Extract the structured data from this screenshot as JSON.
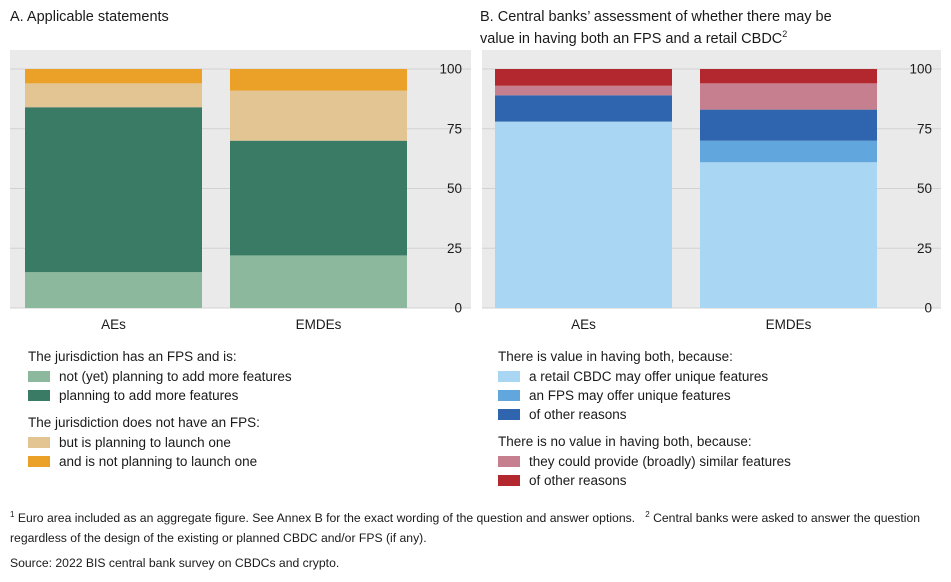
{
  "panelA": {
    "title": "A. Applicable statements",
    "legend": {
      "group1_title": "The jurisdiction has an FPS and is:",
      "group1": [
        {
          "label": "not (yet) planning to add more features",
          "color": "#8cb89d"
        },
        {
          "label": "planning to add more features",
          "color": "#3a7b65"
        }
      ],
      "group2_title": "The jurisdiction does not have an FPS:",
      "group2": [
        {
          "label": "but is planning to launch one",
          "color": "#e3c593"
        },
        {
          "label": "and is not planning to launch one",
          "color": "#eba128"
        }
      ]
    }
  },
  "panelB": {
    "title_line1": "B. Central banks’ assessment of whether there may be",
    "title_line2": "value in having both an FPS and a retail CBDC",
    "title_sup": "2",
    "legend": {
      "group1_title": "There is value in having both, because:",
      "group1": [
        {
          "label": "a retail CBDC may offer unique features",
          "color": "#a9d6f3"
        },
        {
          "label": "an FPS may offer unique features",
          "color": "#62a6de"
        },
        {
          "label": "of other reasons",
          "color": "#2f64ae"
        }
      ],
      "group2_title": "There is no value in having both, because:",
      "group2": [
        {
          "label": "they could provide (broadly) similar features",
          "color": "#c67f8e"
        },
        {
          "label": "of other reasons",
          "color": "#b3282e"
        }
      ]
    }
  },
  "chart_data": [
    {
      "type": "bar",
      "stacked": true,
      "title": "A. Applicable statements",
      "categories": [
        "AEs",
        "EMDEs"
      ],
      "ylim": [
        0,
        100
      ],
      "yticks": [
        0,
        25,
        50,
        75,
        100
      ],
      "y_axis_side": "right",
      "grid": true,
      "series": [
        {
          "name": "not (yet) planning to add more features",
          "color": "#8cb89d",
          "values": [
            15,
            22
          ]
        },
        {
          "name": "planning to add more features",
          "color": "#3a7b65",
          "values": [
            69,
            48
          ]
        },
        {
          "name": "but is planning to launch one",
          "color": "#e3c593",
          "values": [
            10,
            21
          ]
        },
        {
          "name": "and is not planning to launch one",
          "color": "#eba128",
          "values": [
            6,
            9
          ]
        }
      ]
    },
    {
      "type": "bar",
      "stacked": true,
      "title": "B. Central banks’ assessment of whether there may be value in having both an FPS and a retail CBDC",
      "categories": [
        "AEs",
        "EMDEs"
      ],
      "ylim": [
        0,
        100
      ],
      "yticks": [
        0,
        25,
        50,
        75,
        100
      ],
      "y_axis_side": "right",
      "grid": true,
      "series": [
        {
          "name": "a retail CBDC may offer unique features",
          "color": "#a9d6f3",
          "values": [
            78,
            61
          ]
        },
        {
          "name": "an FPS may offer unique features",
          "color": "#62a6de",
          "values": [
            0,
            9
          ]
        },
        {
          "name": "of other reasons",
          "color": "#2f64ae",
          "values": [
            11,
            13
          ]
        },
        {
          "name": "they could provide (broadly) similar features",
          "color": "#c67f8e",
          "values": [
            4,
            11
          ]
        },
        {
          "name": "of other reasons",
          "color": "#b3282e",
          "values": [
            7,
            6
          ]
        }
      ]
    }
  ],
  "footnote": {
    "sup1": "1",
    "text1": "Euro area included as an aggregate figure. See Annex B for the exact wording of the question and answer options.",
    "sup2": "2",
    "text2": "Central banks were asked to answer the question regardless of the design of the existing or planned CBDC and/or FPS (if any)."
  },
  "source": "Source: 2022 BIS central bank survey on CBDCs and crypto."
}
